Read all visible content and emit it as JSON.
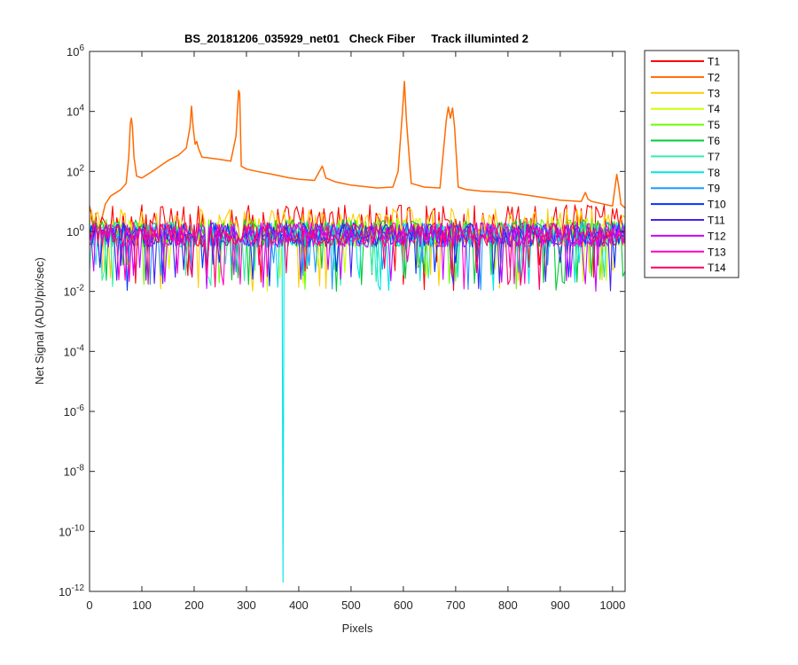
{
  "chart_data": {
    "type": "line",
    "title": "BS_20181206_035929_net01   Check Fiber     Track illuminted 2",
    "xlabel": "Pixels",
    "ylabel": "Net Signal (ADU/pix/sec)",
    "xlim": [
      0,
      1024
    ],
    "ylim_exponents": [
      -12,
      6
    ],
    "yscale": "log",
    "grid": false,
    "legend_placement": "outside-right",
    "x_ticks": [
      0,
      100,
      200,
      300,
      400,
      500,
      600,
      700,
      800,
      900,
      1000
    ],
    "x_tick_labels": [
      "0",
      "100",
      "200",
      "300",
      "400",
      "500",
      "600",
      "700",
      "800",
      "900",
      "1000"
    ],
    "y_tick_exponents": [
      -12,
      -10,
      -8,
      -6,
      -4,
      -2,
      0,
      2,
      4,
      6
    ],
    "y_tick_labels": [
      {
        "base": "10",
        "exp": "-12"
      },
      {
        "base": "10",
        "exp": "-10"
      },
      {
        "base": "10",
        "exp": "-8"
      },
      {
        "base": "10",
        "exp": "-6"
      },
      {
        "base": "10",
        "exp": "-4"
      },
      {
        "base": "10",
        "exp": "-2"
      },
      {
        "base": "10",
        "exp": "0"
      },
      {
        "base": "10",
        "exp": "2"
      },
      {
        "base": "10",
        "exp": "4"
      },
      {
        "base": "10",
        "exp": "6"
      }
    ],
    "noise_band": {
      "typical_min": 0.3,
      "typical_max": 5,
      "dip_min": 0.01,
      "dip_max": 0.1
    },
    "series": [
      {
        "name": "T1",
        "color": "#ff0000",
        "level": 8
      },
      {
        "name": "T2",
        "color": "#ff6a00",
        "level": null,
        "x": [
          0,
          10,
          20,
          30,
          40,
          60,
          70,
          75,
          78,
          80,
          82,
          85,
          90,
          100,
          120,
          150,
          170,
          185,
          192,
          195,
          198,
          202,
          205,
          208,
          215,
          230,
          250,
          270,
          280,
          285,
          287,
          290,
          300,
          320,
          350,
          380,
          400,
          430,
          445,
          448,
          452,
          470,
          500,
          550,
          580,
          590,
          598,
          602,
          606,
          615,
          640,
          670,
          682,
          686,
          690,
          694,
          698,
          705,
          720,
          750,
          800,
          850,
          900,
          940,
          948,
          953,
          960,
          1000,
          1008,
          1012,
          1016,
          1024
        ],
        "y": [
          0.9,
          0.9,
          1.5,
          8,
          15,
          25,
          40,
          300,
          4000,
          6000,
          3000,
          300,
          70,
          60,
          100,
          230,
          350,
          600,
          3000,
          15000,
          3000,
          800,
          1000,
          600,
          300,
          280,
          250,
          220,
          1500,
          50000,
          40000,
          150,
          120,
          100,
          80,
          62,
          55,
          50,
          150,
          100,
          60,
          45,
          35,
          28,
          30,
          100,
          8000,
          100000,
          5000,
          40,
          30,
          28,
          5000,
          14000,
          6000,
          13000,
          3000,
          30,
          25,
          22,
          20,
          15,
          11,
          10,
          20,
          12,
          10,
          7,
          80,
          30,
          8,
          6
        ]
      },
      {
        "name": "T3",
        "color": "#ffcc00",
        "level": 6
      },
      {
        "name": "T4",
        "color": "#ccff00",
        "level": 3
      },
      {
        "name": "T5",
        "color": "#66ff00",
        "level": 2.5
      },
      {
        "name": "T6",
        "color": "#00cc33",
        "level": 2.5
      },
      {
        "name": "T7",
        "color": "#33eeaa",
        "level": 2
      },
      {
        "name": "T8",
        "color": "#00e5e5",
        "level": 2,
        "spike": {
          "x": 370,
          "y": 2e-12
        }
      },
      {
        "name": "T9",
        "color": "#1f9bff",
        "level": 2
      },
      {
        "name": "T10",
        "color": "#0033ff",
        "level": 2
      },
      {
        "name": "T11",
        "color": "#4422ee",
        "level": 2
      },
      {
        "name": "T12",
        "color": "#cc00ff",
        "level": 2
      },
      {
        "name": "T13",
        "color": "#ff00cc",
        "level": 2
      },
      {
        "name": "T14",
        "color": "#ff0066",
        "level": 2
      }
    ]
  }
}
